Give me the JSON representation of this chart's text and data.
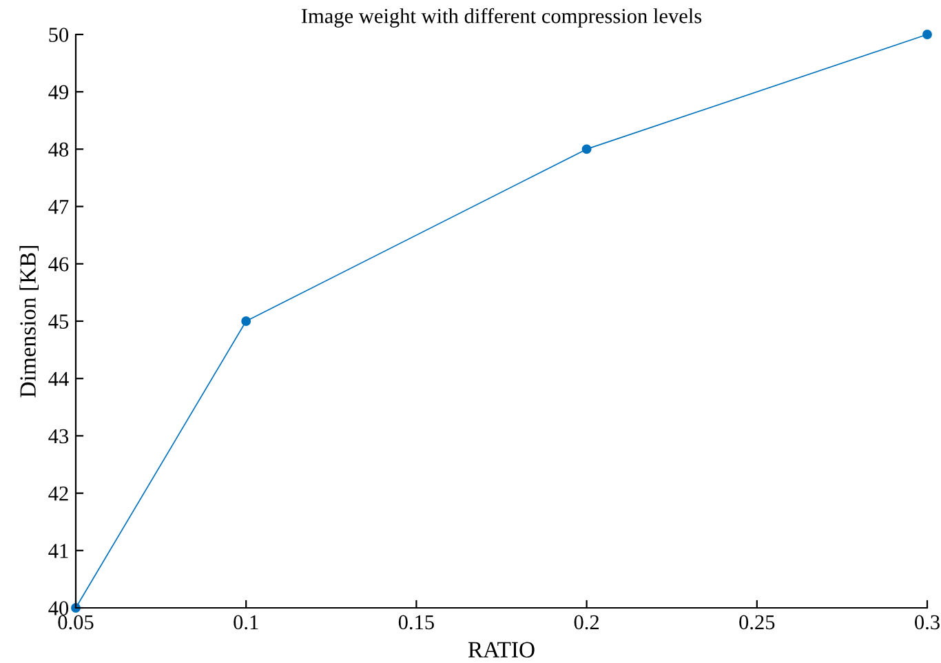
{
  "chart_data": {
    "type": "line",
    "title": "Image weight with different compression levels",
    "xlabel": "RATIO",
    "ylabel": "Dimension [KB]",
    "x": [
      0.05,
      0.1,
      0.2,
      0.3
    ],
    "series": [
      {
        "color": "#0072bd",
        "values": [
          40,
          45,
          48,
          50
        ]
      }
    ],
    "xlim": [
      0.05,
      0.3
    ],
    "xticks": [
      0.05,
      0.1,
      0.15,
      0.2,
      0.25,
      0.3
    ],
    "ylim": [
      40,
      50
    ],
    "yticks": [
      40,
      41,
      42,
      43,
      44,
      45,
      46,
      47,
      48,
      49,
      50
    ],
    "grid": false,
    "legend": false,
    "marker": "circle",
    "line_style": "solid"
  }
}
